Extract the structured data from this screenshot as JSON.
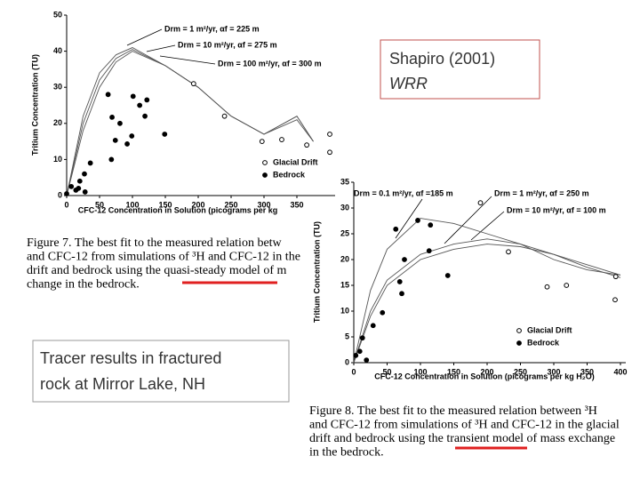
{
  "slide": {
    "citation": [
      "Shapiro (2001)",
      "WRR"
    ],
    "summary": [
      "Tracer results in fractured",
      "rock at Mirror Lake, NH"
    ]
  },
  "chart_data": [
    {
      "type": "scatter",
      "xlabel": "CFC-12 Concentration in Solution (picograms per kg",
      "ylabel": "Tritium Concentration (TU)",
      "xlim": [
        0,
        400
      ],
      "ylim": [
        0,
        50
      ],
      "xticks": [
        0,
        50,
        100,
        150,
        200,
        250,
        300,
        350
      ],
      "yticks": [
        0,
        10,
        20,
        30,
        40,
        50
      ],
      "caption": [
        "Figure 7.  The best fit to the measured relation betw",
        "and CFC-12 from simulations of ³H and CFC-12 in the",
        "drift and bedrock using the quasi-steady model of m",
        "change in the bedrock."
      ],
      "series": [
        {
          "name": "Drm = 1 m²/yr,  αf = 225 m",
          "mode": "line",
          "color": "#555555",
          "x": [
            0,
            25,
            50,
            75,
            100,
            150,
            200,
            250,
            300,
            350,
            375
          ],
          "values": [
            0,
            22,
            34,
            39,
            41,
            36,
            30,
            22,
            17,
            22,
            15
          ]
        },
        {
          "name": "Drm = 10 m²/yr,  αf = 275 m",
          "mode": "line",
          "color": "#555555",
          "x": [
            0,
            25,
            50,
            75,
            100,
            150,
            200,
            250,
            300,
            350,
            375
          ],
          "values": [
            0,
            20,
            32,
            38,
            40.5,
            36,
            30,
            22,
            17,
            22,
            15
          ]
        },
        {
          "name": "Drm = 100 m²/yr,  αf = 300 m",
          "mode": "line",
          "color": "#555555",
          "x": [
            0,
            25,
            50,
            75,
            100,
            150,
            200,
            250,
            300,
            350,
            375
          ],
          "values": [
            0,
            18,
            30,
            37,
            40,
            36,
            30,
            22,
            17,
            21,
            15
          ]
        },
        {
          "name": "Glacial Drift",
          "mode": "open",
          "color": "#000000",
          "x": [
            193,
            240,
            297,
            327,
            365,
            400,
            400
          ],
          "values": [
            31,
            22,
            15,
            15.5,
            14,
            17,
            12
          ]
        },
        {
          "name": "Bedrock",
          "mode": "filled",
          "color": "#000000",
          "x": [
            63,
            101,
            111,
            122,
            69,
            81,
            119,
            74,
            99,
            92,
            149,
            68,
            27,
            20,
            36,
            7,
            14,
            28,
            0,
            18
          ],
          "values": [
            28,
            27.5,
            25,
            26.5,
            21.7,
            20,
            22,
            15.3,
            16.5,
            14.3,
            17,
            10,
            6,
            4,
            9,
            2.5,
            1.5,
            1,
            0.5,
            2
          ]
        }
      ]
    },
    {
      "type": "scatter",
      "xlabel": "CFC-12 Concentration in Solution (picograms per kg H₂O)",
      "ylabel": "Tritium Concentration (TU)",
      "xlim": [
        0,
        400
      ],
      "ylim": [
        0,
        35
      ],
      "xticks": [
        0,
        50,
        100,
        150,
        200,
        250,
        300,
        350,
        400
      ],
      "yticks": [
        0,
        5,
        10,
        15,
        20,
        25,
        30,
        35
      ],
      "caption": [
        "Figure 8.  The best fit to the measured relation between ³H",
        "and CFC-12 from simulations of ³H and CFC-12 in the glacial",
        "drift and bedrock using the transient model of mass exchange",
        "in the bedrock."
      ],
      "series": [
        {
          "name": "Drm = 0.1 m²/yr,  αf =185 m",
          "mode": "line",
          "color": "#555555",
          "x": [
            0,
            25,
            50,
            100,
            150,
            200,
            250,
            300,
            350,
            400
          ],
          "values": [
            0,
            14,
            22,
            28,
            27,
            25,
            23,
            20,
            18,
            17
          ]
        },
        {
          "name": "Drm = 1 m²/yr,  αf = 250 m",
          "mode": "line",
          "color": "#555555",
          "x": [
            0,
            25,
            50,
            100,
            150,
            200,
            250,
            300,
            350,
            400
          ],
          "values": [
            0,
            10,
            16,
            21,
            23,
            24,
            23,
            21,
            19,
            17
          ]
        },
        {
          "name": "Drm = 10 m²/yr,  αf = 100 m",
          "mode": "line",
          "color": "#555555",
          "x": [
            0,
            25,
            50,
            100,
            150,
            200,
            250,
            300,
            350,
            400
          ],
          "values": [
            0,
            9,
            15,
            20,
            22,
            23,
            22.5,
            21,
            18.5,
            16.5
          ]
        },
        {
          "name": "Glacial Drift",
          "mode": "open",
          "color": "#000000",
          "x": [
            232,
            290,
            319,
            393,
            392,
            190
          ],
          "values": [
            21.5,
            14.7,
            15,
            16.7,
            12.2,
            31
          ]
        },
        {
          "name": "Bedrock",
          "mode": "filled",
          "color": "#000000",
          "x": [
            96,
            115,
            63,
            76,
            113,
            141,
            69,
            72,
            43,
            29,
            13,
            3,
            9,
            19
          ],
          "values": [
            27.6,
            26.7,
            25.9,
            20,
            21.7,
            16.9,
            15.7,
            13.4,
            9.7,
            7.2,
            4.8,
            1.4,
            2.2,
            0.5
          ]
        }
      ]
    }
  ]
}
